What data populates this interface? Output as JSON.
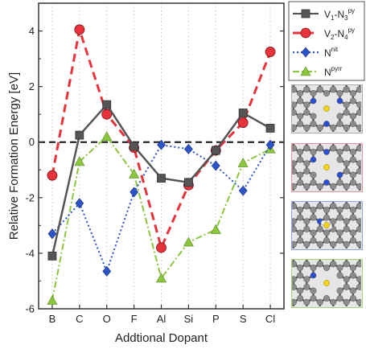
{
  "chart_data": {
    "type": "line",
    "xlabel": "Addtional Dopant",
    "ylabel": "Relative Formation Energy  [eV]",
    "categories": [
      "B",
      "C",
      "O",
      "F",
      "Al",
      "Si",
      "P",
      "S",
      "Cl"
    ],
    "ylim": [
      -6,
      5
    ],
    "yticks": [
      -6,
      -4,
      -2,
      0,
      2,
      4
    ],
    "grid": "vertical dotted",
    "reference_line": 0,
    "legend_position": "right, outside plot",
    "series": [
      {
        "name": "V1-N3py",
        "label_main": "V",
        "label_sub1": "1",
        "label_mid": "-N",
        "label_sub2": "3",
        "label_sup": "py",
        "color": "#555555",
        "marker": "square",
        "line": "solid",
        "values": [
          -4.1,
          0.25,
          1.35,
          -0.15,
          -1.3,
          -1.45,
          -0.3,
          1.05,
          0.5
        ]
      },
      {
        "name": "V2-N4py",
        "label_main": "V",
        "label_sub1": "2",
        "label_mid": "-N",
        "label_sub2": "4",
        "label_sup": "py",
        "color": "#e8323c",
        "marker": "circle",
        "line": "dashed",
        "values": [
          -1.2,
          4.05,
          1.0,
          -0.2,
          -3.8,
          -1.55,
          -0.3,
          0.7,
          3.25
        ]
      },
      {
        "name": "Nnit",
        "label_main": "N",
        "label_sup": "nit",
        "color": "#2b55c8",
        "marker": "diamond",
        "line": "dotted",
        "values": [
          -3.3,
          -2.2,
          -4.65,
          -1.8,
          -0.1,
          -0.25,
          -0.85,
          -1.75,
          -0.1
        ]
      },
      {
        "name": "Npyrr",
        "label_main": "N",
        "label_sup": "pyrr",
        "color": "#8cc63f",
        "marker": "triangle",
        "line": "dashdot",
        "values": [
          -5.7,
          -0.7,
          0.2,
          -1.15,
          -4.9,
          -3.6,
          -3.15,
          -0.75,
          -0.25
        ]
      }
    ]
  },
  "insets": [
    {
      "name": "inset-v1-n3py",
      "border_color": "#aaaaaa"
    },
    {
      "name": "inset-v2-n4py",
      "border_color": "#e8909a"
    },
    {
      "name": "inset-nnit",
      "border_color": "#8fa6e0"
    },
    {
      "name": "inset-npyrr",
      "border_color": "#a9d07a"
    }
  ],
  "colors": {
    "carbon": "#8c8c8c",
    "nitrogen": "#2b4fd0",
    "dopant": "#f2d21a",
    "hydrogen": "#f2f2f2"
  }
}
